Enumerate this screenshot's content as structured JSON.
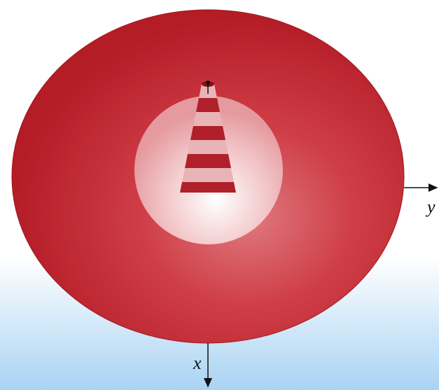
{
  "axes": {
    "y": "y",
    "x": "x"
  }
}
